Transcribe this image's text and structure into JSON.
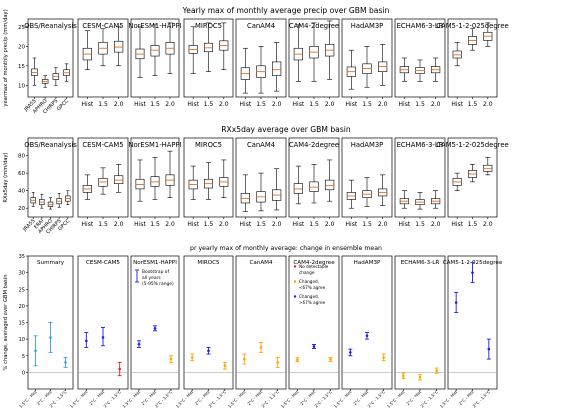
{
  "chart_data": [
    {
      "type": "boxplot",
      "title": "Yearly max of monthly average precip over GBM basin",
      "ylabel": "yearmax of monthly precip (mm/day)",
      "ylim": [
        7,
        27
      ],
      "yticks": [
        10,
        15,
        20,
        25
      ],
      "panels": [
        {
          "name": "OBS/Reanalysis",
          "categories": [
            "JRA55",
            "APHRO",
            "CHIRPS",
            "GPCC"
          ],
          "boxes": [
            [
              10,
              12.5,
              13.3,
              14.2,
              17
            ],
            [
              9.5,
              10.5,
              11,
              11.5,
              12.5
            ],
            [
              10,
              11.5,
              12.3,
              13,
              14.5
            ],
            [
              11,
              12.5,
              13.2,
              14,
              15.5
            ]
          ]
        },
        {
          "name": "CESM-CAM5",
          "categories": [
            "Hist",
            "1.5",
            "2.0"
          ],
          "boxes": [
            [
              14,
              16.5,
              18,
              19.5,
              24
            ],
            [
              15,
              18,
              19.5,
              21,
              24.5
            ],
            [
              15,
              18.5,
              19.8,
              21.3,
              25
            ]
          ]
        },
        {
          "name": "NorESM1-HAPPI",
          "categories": [
            "Hist",
            "1.5",
            "2.0"
          ],
          "boxes": [
            [
              12,
              16.8,
              18,
              19.3,
              25
            ],
            [
              12.5,
              17.5,
              19,
              20.2,
              25.5
            ],
            [
              13,
              18,
              19.5,
              21,
              26
            ]
          ]
        },
        {
          "name": "MIROC5",
          "categories": [
            "Hist",
            "1.5",
            "2.0"
          ],
          "boxes": [
            [
              13,
              18.2,
              19.2,
              20.2,
              25
            ],
            [
              13.5,
              18.6,
              19.6,
              20.8,
              26
            ],
            [
              14,
              19,
              20.2,
              21.4,
              26
            ]
          ]
        },
        {
          "name": "CanAM4",
          "categories": [
            "Hist",
            "1.5",
            "2.0"
          ],
          "boxes": [
            [
              8,
              11.5,
              13,
              14.5,
              19.5
            ],
            [
              8,
              12,
              13.5,
              15,
              20
            ],
            [
              8.5,
              12.5,
              14,
              16,
              21
            ]
          ]
        },
        {
          "name": "CAM4-2degree",
          "categories": [
            "Hist",
            "1.5",
            "2.0"
          ],
          "boxes": [
            [
              11,
              16.5,
              18,
              19.5,
              25.5
            ],
            [
              11,
              17,
              18.5,
              20,
              26
            ],
            [
              11.5,
              17.5,
              19,
              20.5,
              26.5
            ]
          ]
        },
        {
          "name": "HadAM3P",
          "categories": [
            "Hist",
            "1.5",
            "2.0"
          ],
          "boxes": [
            [
              9,
              12.3,
              13.5,
              14.7,
              19
            ],
            [
              9.5,
              13,
              14.3,
              15.5,
              20
            ],
            [
              10,
              13.5,
              14.8,
              16,
              20.5
            ]
          ]
        },
        {
          "name": "ECHAM6-3-LR",
          "categories": [
            "Hist",
            "1.5",
            "2.0"
          ],
          "boxes": [
            [
              11,
              13.2,
              14,
              14.8,
              17
            ],
            [
              11,
              13,
              13.8,
              14.6,
              16.5
            ],
            [
              11,
              13.2,
              14,
              14.8,
              17
            ]
          ]
        },
        {
          "name": "CAM5-1-2-025degree",
          "categories": [
            "Hist",
            "1.5",
            "2.0"
          ],
          "boxes": [
            [
              15,
              17,
              17.8,
              18.8,
              21
            ],
            [
              19,
              20.5,
              21.5,
              22.5,
              24.5
            ],
            [
              20,
              21.5,
              22.6,
              23.6,
              26
            ]
          ]
        }
      ]
    },
    {
      "type": "boxplot",
      "title": "RXx5day average over GBM basin",
      "ylabel": "RXx5day (mm/day)",
      "ylim": [
        10,
        100
      ],
      "yticks": [
        20,
        40,
        60,
        80
      ],
      "panels": [
        {
          "name": "OBS/Reanalysis",
          "categories": [
            "JRA55",
            "ERAI",
            "APHRO",
            "CHIRPS",
            "GPCC"
          ],
          "boxes": [
            [
              22,
              26,
              29,
              32,
              38
            ],
            [
              20,
              24,
              27,
              30,
              36
            ],
            [
              19,
              22,
              24,
              27,
              32
            ],
            [
              21,
              25,
              28,
              31,
              37
            ],
            [
              24,
              28,
              31,
              34,
              40
            ]
          ]
        },
        {
          "name": "CESM-CAM5",
          "categories": [
            "Hist",
            "1.5",
            "2.0"
          ],
          "boxes": [
            [
              30,
              38,
              42,
              46,
              58
            ],
            [
              36,
              45,
              50,
              54,
              66
            ],
            [
              38,
              48,
              52,
              57,
              70
            ]
          ]
        },
        {
          "name": "NorESM1-HAPPI",
          "categories": [
            "Hist",
            "1.5",
            "2.0"
          ],
          "boxes": [
            [
              28,
              42,
              47,
              53,
              75
            ],
            [
              30,
              45,
              50,
              56,
              78
            ],
            [
              32,
              46,
              52,
              58,
              85
            ]
          ]
        },
        {
          "name": "MIROC5",
          "categories": [
            "Hist",
            "1.5",
            "2.0"
          ],
          "boxes": [
            [
              30,
              42,
              47,
              52,
              68
            ],
            [
              30,
              43,
              48,
              53,
              72
            ],
            [
              32,
              45,
              50,
              55,
              75
            ]
          ]
        },
        {
          "name": "CanAM4",
          "categories": [
            "Hist",
            "1.5",
            "2.0"
          ],
          "boxes": [
            [
              16,
              26,
              31,
              37,
              58
            ],
            [
              17,
              27,
              33,
              39,
              60
            ],
            [
              18,
              29,
              35,
              41,
              65
            ]
          ]
        },
        {
          "name": "CAM4-2degree",
          "categories": [
            "Hist",
            "1.5",
            "2.0"
          ],
          "boxes": [
            [
              25,
              37,
              42,
              48,
              68
            ],
            [
              26,
              39,
              44,
              50,
              70
            ],
            [
              28,
              41,
              46,
              52,
              75
            ]
          ]
        },
        {
          "name": "HadAM3P",
          "categories": [
            "Hist",
            "1.5",
            "2.0"
          ],
          "boxes": [
            [
              20,
              30,
              34,
              38,
              52
            ],
            [
              22,
              32,
              36,
              40,
              55
            ],
            [
              23,
              34,
              38,
              42,
              58
            ]
          ]
        },
        {
          "name": "ECHAM6-3-LR",
          "categories": [
            "Hist",
            "1.5",
            "2.0"
          ],
          "boxes": [
            [
              20,
              25,
              28,
              31,
              40
            ],
            [
              19,
              24,
              27,
              30,
              38
            ],
            [
              20,
              25,
              28,
              31,
              40
            ]
          ]
        },
        {
          "name": "CAM5-1-2-025degree",
          "categories": [
            "Hist",
            "1.5",
            "2.0"
          ],
          "boxes": [
            [
              40,
              46,
              50,
              54,
              60
            ],
            [
              50,
              55,
              59,
              63,
              70
            ],
            [
              58,
              62,
              65,
              69,
              78
            ]
          ]
        }
      ]
    },
    {
      "type": "errorbar",
      "title": "pr yearly max of monthly average: change in ensemble mean",
      "ylabel": "% change, averaged over GBM basin",
      "ylim": [
        -5,
        35
      ],
      "yticks": [
        0,
        5,
        10,
        15,
        20,
        25,
        30,
        35
      ],
      "categories": [
        "1.5°C - Hist",
        "2°C - Hist",
        "2°C - 1.5°C"
      ],
      "legend_entries": [
        {
          "label": "No detectable change",
          "color": "#d62728"
        },
        {
          "label": "Changed, <67% agree",
          "color": "#ffa500"
        },
        {
          "label": "Changed, >67% agree",
          "color": "#1f1fd6"
        }
      ],
      "bootstrap_label": "Bootstrap of all years (5-95% range)",
      "panels": [
        {
          "name": "Summary",
          "points": [
            {
              "v": 6.5,
              "lo": 2,
              "hi": 11,
              "c": "#3a9fd6"
            },
            {
              "v": 10.5,
              "lo": 6,
              "hi": 15,
              "c": "#3a9fd6"
            },
            {
              "v": 3,
              "lo": 1.5,
              "hi": 4.5,
              "c": "#3a9fd6"
            }
          ]
        },
        {
          "name": "CESM-CAM5",
          "points": [
            {
              "v": 9.5,
              "lo": 7.5,
              "hi": 12,
              "c": "#1f1fd6"
            },
            {
              "v": 10.5,
              "lo": 8,
              "hi": 13.5,
              "c": "#1f1fd6"
            },
            {
              "v": 1,
              "lo": -1,
              "hi": 3,
              "c": "#d62728"
            }
          ]
        },
        {
          "name": "NorESM1-HAPPI",
          "points": [
            {
              "v": 8.5,
              "lo": 7.5,
              "hi": 9.5,
              "c": "#1f1fd6"
            },
            {
              "v": 13.2,
              "lo": 12.5,
              "hi": 14,
              "c": "#1f1fd6"
            },
            {
              "v": 4,
              "lo": 3,
              "hi": 5,
              "c": "#ffa500"
            }
          ]
        },
        {
          "name": "MIROC5",
          "points": [
            {
              "v": 4.5,
              "lo": 3.5,
              "hi": 5.5,
              "c": "#ffa500"
            },
            {
              "v": 6.5,
              "lo": 5.5,
              "hi": 7.5,
              "c": "#1f1fd6"
            },
            {
              "v": 2,
              "lo": 1,
              "hi": 3,
              "c": "#ffa500"
            }
          ]
        },
        {
          "name": "CanAM4",
          "points": [
            {
              "v": 4,
              "lo": 2.5,
              "hi": 5.5,
              "c": "#ffa500"
            },
            {
              "v": 7.5,
              "lo": 6,
              "hi": 9,
              "c": "#ffa500"
            },
            {
              "v": 3,
              "lo": 1.5,
              "hi": 4.5,
              "c": "#ffa500"
            }
          ]
        },
        {
          "name": "CAM4-2degree",
          "points": [
            {
              "v": 3.8,
              "lo": 3.2,
              "hi": 4.4,
              "c": "#ffa500"
            },
            {
              "v": 7.8,
              "lo": 7.2,
              "hi": 8.4,
              "c": "#1f1fd6"
            },
            {
              "v": 3.9,
              "lo": 3.3,
              "hi": 4.5,
              "c": "#ffa500"
            }
          ]
        },
        {
          "name": "HadAM3P",
          "points": [
            {
              "v": 6,
              "lo": 5,
              "hi": 7,
              "c": "#1f1fd6"
            },
            {
              "v": 11,
              "lo": 10,
              "hi": 12,
              "c": "#1f1fd6"
            },
            {
              "v": 4.5,
              "lo": 3.5,
              "hi": 5.5,
              "c": "#ffa500"
            }
          ]
        },
        {
          "name": "ECHAM6-3-LR",
          "points": [
            {
              "v": -1,
              "lo": -1.8,
              "hi": -0.2,
              "c": "#ffa500"
            },
            {
              "v": -1.5,
              "lo": -2.3,
              "hi": -0.7,
              "c": "#ffa500"
            },
            {
              "v": 0.5,
              "lo": -0.3,
              "hi": 1.3,
              "c": "#ffa500"
            }
          ]
        },
        {
          "name": "CAM5-1-2-025degree",
          "points": [
            {
              "v": 21,
              "lo": 18,
              "hi": 24,
              "c": "#1f1fd6"
            },
            {
              "v": 30,
              "lo": 27,
              "hi": 33,
              "c": "#1f1fd6"
            },
            {
              "v": 7,
              "lo": 4,
              "hi": 10,
              "c": "#1f1fd6"
            }
          ]
        }
      ]
    }
  ]
}
